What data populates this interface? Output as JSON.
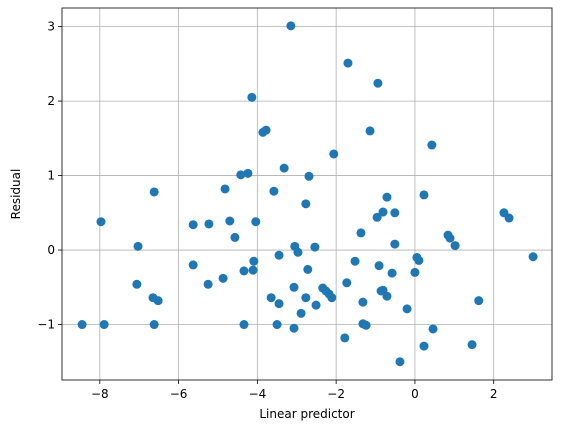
{
  "chart_data": {
    "type": "scatter",
    "x_label": "Linear predictor",
    "y_label": "Residual",
    "color": "#1f77b4",
    "grid": true,
    "xlim": [
      -8.96,
      3.48
    ],
    "ylim": [
      -1.745,
      3.25
    ],
    "xticks": [
      {
        "value": -8,
        "label": "−8"
      },
      {
        "value": -6,
        "label": "−6"
      },
      {
        "value": -4,
        "label": "−4"
      },
      {
        "value": -2,
        "label": "−2"
      },
      0,
      2
    ],
    "yticks": [
      {
        "value": -1,
        "label": "−1"
      },
      0,
      1,
      2,
      3
    ],
    "x": [
      -8.45,
      -7.97,
      -7.89,
      -7.03,
      -7.06,
      -6.65,
      -6.52,
      -6.62,
      -6.62,
      -5.63,
      -5.63,
      -5.23,
      -5.25,
      -4.87,
      -4.82,
      -4.7,
      -4.57,
      -4.42,
      -4.24,
      -4.34,
      -4.34,
      -4.14,
      -4.11,
      -4.09,
      -4.04,
      -3.86,
      -3.78,
      -3.65,
      -3.58,
      -3.5,
      -3.45,
      -3.45,
      -3.32,
      -3.15,
      -3.05,
      -3.07,
      -3.07,
      -2.97,
      -2.89,
      -2.77,
      -2.77,
      -2.72,
      -2.69,
      -2.54,
      -2.51,
      -2.34,
      -2.26,
      -2.18,
      -2.11,
      -2.06,
      -1.78,
      -1.73,
      -1.7,
      -1.52,
      -1.37,
      -1.32,
      -1.32,
      -1.24,
      -1.14,
      -0.96,
      -0.94,
      -0.91,
      -0.86,
      -0.81,
      -0.81,
      -0.71,
      -0.71,
      -0.58,
      -0.51,
      -0.51,
      -0.38,
      -0.2,
      0.0,
      0.05,
      0.1,
      0.23,
      0.23,
      0.43,
      0.46,
      0.84,
      0.89,
      1.02,
      1.45,
      1.62,
      2.26,
      2.39,
      3.0
    ],
    "values": [
      -1.0,
      0.38,
      -1.0,
      0.05,
      -0.46,
      -0.64,
      -0.68,
      0.78,
      -1.0,
      0.34,
      -0.2,
      0.35,
      -0.46,
      -0.38,
      0.82,
      0.39,
      0.17,
      1.01,
      1.03,
      -0.28,
      -1.0,
      2.05,
      -0.27,
      -0.15,
      0.38,
      1.58,
      1.61,
      -0.64,
      0.79,
      -1.0,
      -0.72,
      -0.07,
      1.1,
      3.01,
      0.05,
      -0.5,
      -1.05,
      -0.03,
      -0.85,
      -0.64,
      0.62,
      -0.26,
      0.99,
      0.04,
      -0.74,
      -0.51,
      -0.55,
      -0.59,
      -0.64,
      1.29,
      -1.18,
      -0.44,
      2.51,
      -0.15,
      0.23,
      -0.7,
      -0.99,
      -1.01,
      1.6,
      0.44,
      2.24,
      -0.21,
      -0.55,
      0.51,
      -0.54,
      -0.62,
      0.71,
      -0.31,
      0.5,
      0.08,
      -1.5,
      -0.79,
      -0.3,
      -0.1,
      -0.14,
      0.74,
      -1.29,
      1.41,
      -1.06,
      0.2,
      0.16,
      0.06,
      -1.27,
      -0.68,
      0.5,
      0.43,
      -0.09
    ]
  }
}
